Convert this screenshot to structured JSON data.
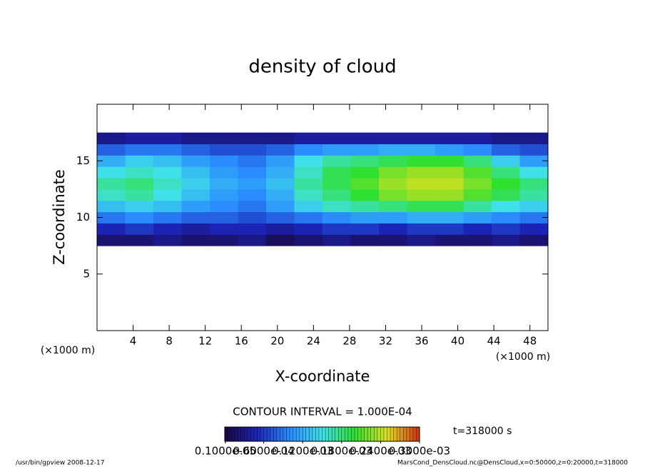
{
  "chart_data": {
    "type": "heatmap",
    "title": "density of cloud",
    "x_label": "X-coordinate",
    "y_label": "Z-coordinate",
    "x_unit": "(×1000 m)",
    "y_unit": "(×1000 m)",
    "xlim": [
      0,
      50
    ],
    "ylim": [
      0,
      20
    ],
    "xticks": [
      4,
      8,
      12,
      16,
      20,
      24,
      28,
      32,
      36,
      40,
      44,
      48
    ],
    "yticks": [
      5,
      10,
      15
    ],
    "x": [
      0,
      3.125,
      6.25,
      9.375,
      12.5,
      15.625,
      18.75,
      21.875,
      25,
      28.125,
      31.25,
      34.375,
      37.5,
      40.625,
      43.75,
      46.875,
      50
    ],
    "z": [
      7.5,
      8.5,
      9.5,
      10.5,
      11.5,
      12.5,
      13.5,
      14.5,
      15.5,
      16.5,
      17.5
    ],
    "values": [
      [
        2e-05,
        2e-05,
        3e-05,
        2e-05,
        2e-05,
        3e-05,
        1e-05,
        2e-05,
        3e-05,
        2e-05,
        2e-05,
        3e-05,
        2e-05,
        2e-05,
        3e-05,
        2e-05
      ],
      [
        5e-05,
        6e-05,
        5e-05,
        4e-05,
        5e-05,
        5e-05,
        4e-05,
        5e-05,
        6e-05,
        6e-05,
        5e-05,
        6e-05,
        6e-05,
        5e-05,
        6e-05,
        5e-05
      ],
      [
        9e-05,
        0.0001,
        9e-05,
        8e-05,
        8e-05,
        7e-05,
        8e-05,
        9e-05,
        0.0001,
        0.00011,
        0.00011,
        0.00012,
        0.00012,
        0.00011,
        0.0001,
        9e-05
      ],
      [
        0.00013,
        0.00014,
        0.00013,
        0.00011,
        0.0001,
        9e-05,
        0.00011,
        0.00014,
        0.00016,
        0.00017,
        0.00018,
        0.00019,
        0.00019,
        0.00017,
        0.00015,
        0.00014
      ],
      [
        0.00016,
        0.00017,
        0.00015,
        0.00013,
        0.00011,
        0.0001,
        0.00012,
        0.00016,
        0.00018,
        0.0002,
        0.00022,
        0.00023,
        0.00023,
        0.00021,
        0.00019,
        0.00017
      ],
      [
        0.00017,
        0.00018,
        0.00016,
        0.00014,
        0.00012,
        0.00011,
        0.00013,
        0.00017,
        0.00019,
        0.00021,
        0.00023,
        0.00024,
        0.00024,
        0.00022,
        0.0002,
        0.00018
      ],
      [
        0.00015,
        0.00016,
        0.00015,
        0.00013,
        0.00011,
        0.0001,
        0.00012,
        0.00016,
        0.00019,
        0.0002,
        0.00022,
        0.00023,
        0.00023,
        0.00021,
        0.00018,
        0.00015
      ],
      [
        0.00012,
        0.00014,
        0.00013,
        0.00011,
        0.0001,
        9e-05,
        0.00011,
        0.00015,
        0.00017,
        0.00018,
        0.00019,
        0.0002,
        0.0002,
        0.00018,
        0.00014,
        0.00011
      ],
      [
        8e-05,
        9e-05,
        9e-05,
        8e-05,
        7e-05,
        7e-05,
        8e-05,
        0.0001,
        0.00011,
        0.00011,
        0.00012,
        0.00012,
        0.00011,
        0.0001,
        8e-05,
        7e-05
      ],
      [
        3e-05,
        4e-05,
        4e-05,
        3e-05,
        3e-05,
        3e-05,
        3e-05,
        4e-05,
        4e-05,
        4e-05,
        4e-05,
        4e-05,
        4e-05,
        4e-05,
        3e-05,
        3e-05
      ]
    ],
    "colormap": [
      "#1a0840",
      "#1c24b8",
      "#2a8cff",
      "#40e0e8",
      "#30e030",
      "#e0e020",
      "#d03010"
    ],
    "clim": [
      0,
      0.0003
    ],
    "colorbar_ticks": [
      {
        "value": 1e-06,
        "label": "0.1000e-05"
      },
      {
        "value": 6e-05,
        "label": "0.6000e-04"
      },
      {
        "value": 0.00012,
        "label": "0.1200e-03"
      },
      {
        "value": 0.00018,
        "label": "0.1800e-03"
      },
      {
        "value": 0.00024,
        "label": "0.2400e-03"
      },
      {
        "value": 0.0003,
        "label": "0.3000e-03"
      }
    ],
    "contour_interval": "CONTOUR INTERVAL = 1.000E-04",
    "time": "t=318000 s",
    "footer_left": "/usr/bin/gpview  2008-12-17",
    "footer_right": "MarsCond_DensCloud.nc@DensCloud,x=0:50000,z=0:20000,t=318000"
  }
}
